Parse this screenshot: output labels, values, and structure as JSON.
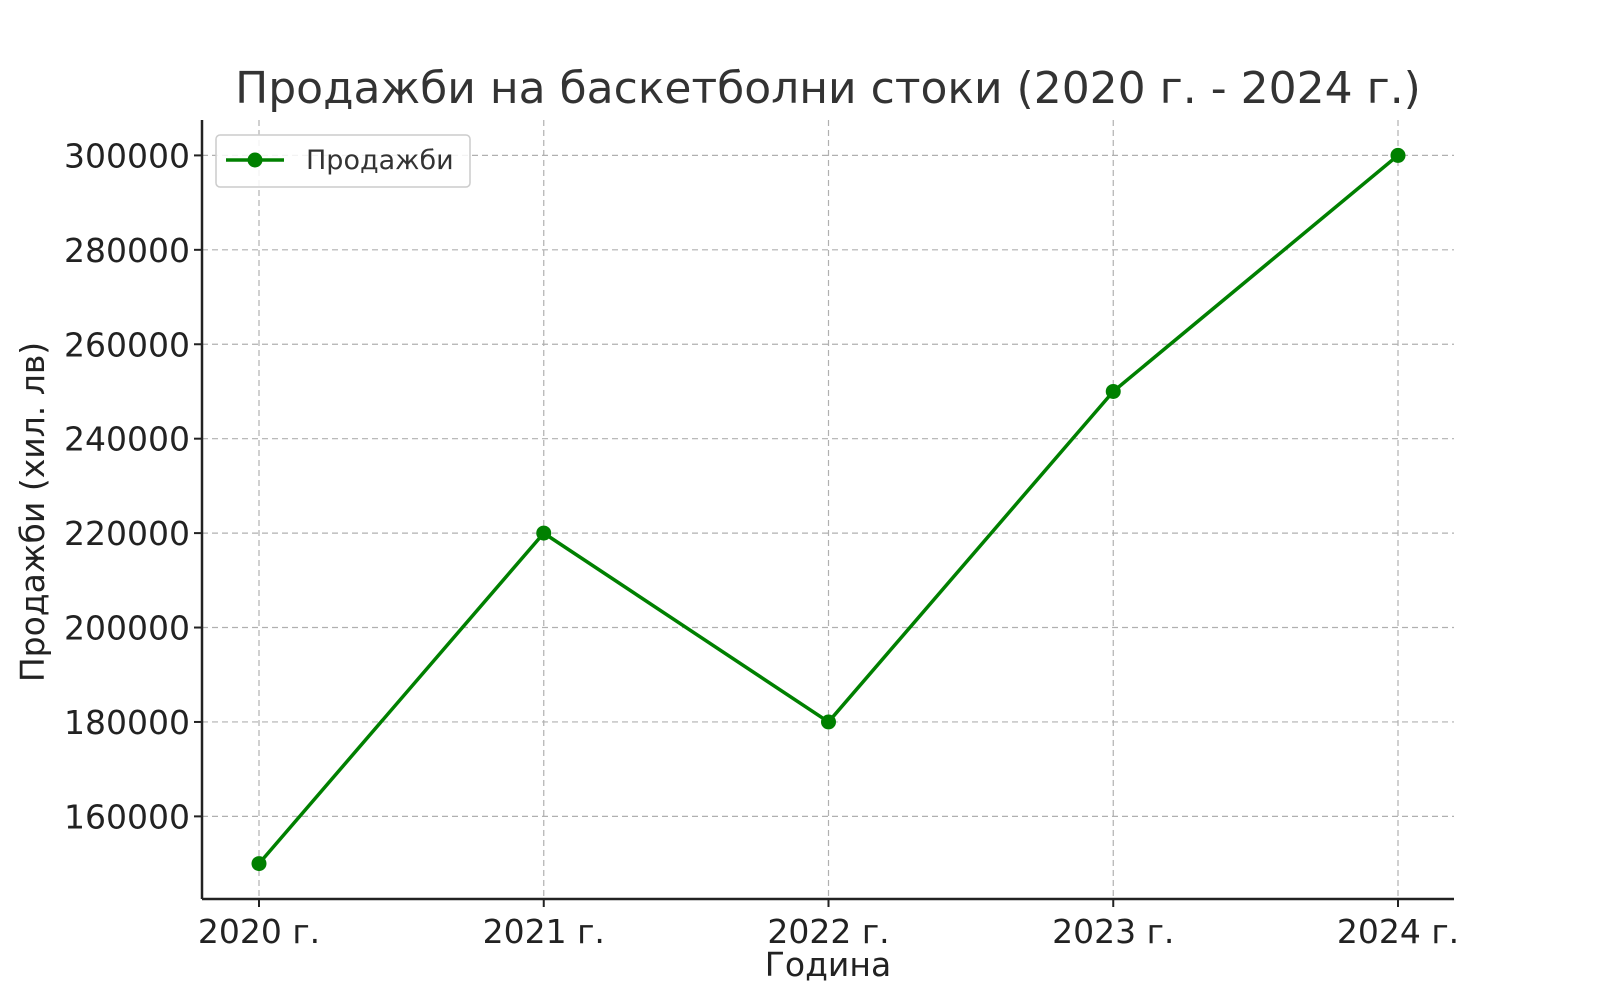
{
  "chart_data": {
    "type": "line",
    "title": "Продажби на баскетболни стоки (2020 г. - 2024 г.)",
    "xlabel": "Година",
    "ylabel": "Продажби (хил. лв)",
    "categories": [
      "2020 г.",
      "2021 г.",
      "2022 г.",
      "2023 г.",
      "2024 г."
    ],
    "series": [
      {
        "name": "Продажби",
        "values": [
          150000,
          220000,
          180000,
          250000,
          300000
        ],
        "color": "#008000",
        "marker": "circle"
      }
    ],
    "yticks": [
      160000,
      180000,
      200000,
      220000,
      240000,
      260000,
      280000,
      300000
    ],
    "ylim": [
      142500,
      307500
    ],
    "grid": true,
    "grid_style": "dashed",
    "legend_position": "upper-left"
  }
}
